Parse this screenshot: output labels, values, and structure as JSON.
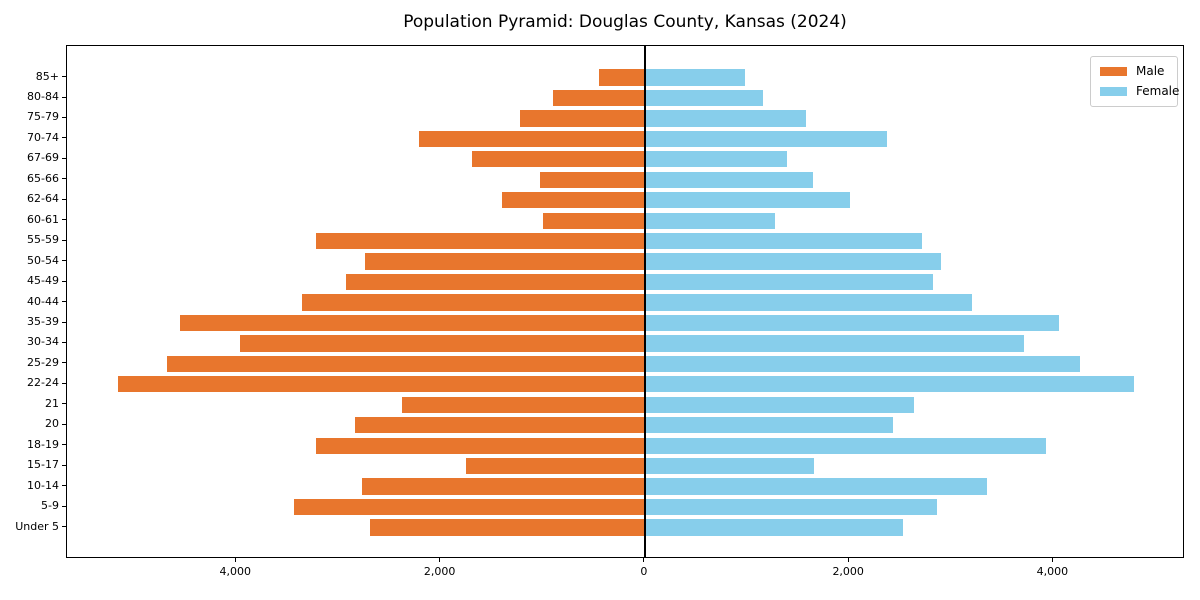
{
  "title": "Population Pyramid: Douglas County, Kansas (2024)",
  "legend": {
    "male_label": "Male",
    "female_label": "Female",
    "position": "upper right"
  },
  "colors": {
    "male": "#e8762d",
    "female": "#87ceeb",
    "axis": "#000000",
    "zero_line": "#000000",
    "legend_border": "#cccccc",
    "background": "#ffffff"
  },
  "chart_data": {
    "type": "bar",
    "subtype": "population-pyramid",
    "orientation": "horizontal",
    "title": "Population Pyramid: Douglas County, Kansas (2024)",
    "xlabel": "",
    "ylabel": "",
    "categories_order": "top-to-bottom",
    "categories": [
      "85+",
      "80-84",
      "75-79",
      "70-74",
      "67-69",
      "65-66",
      "62-64",
      "60-61",
      "55-59",
      "50-54",
      "45-49",
      "40-44",
      "35-39",
      "30-34",
      "25-29",
      "22-24",
      "21",
      "20",
      "18-19",
      "15-17",
      "10-14",
      "5-9",
      "Under 5"
    ],
    "series": [
      {
        "name": "Male",
        "side": "left",
        "color": "#e8762d",
        "values": [
          450,
          900,
          1220,
          2210,
          1690,
          1030,
          1400,
          1000,
          3220,
          2740,
          2930,
          3360,
          4550,
          3960,
          4680,
          5160,
          2380,
          2840,
          3220,
          1750,
          2770,
          3440,
          2690
        ]
      },
      {
        "name": "Female",
        "side": "right",
        "color": "#87ceeb",
        "values": [
          980,
          1160,
          1580,
          2370,
          1390,
          1650,
          2010,
          1270,
          2710,
          2900,
          2820,
          3200,
          4050,
          3710,
          4260,
          4790,
          2640,
          2430,
          3930,
          1660,
          3350,
          2860,
          2530
        ]
      }
    ],
    "x_ticks": {
      "values": [
        -4000,
        -2000,
        0,
        2000,
        4000
      ],
      "labels": [
        "4,000",
        "2,000",
        "0",
        "2,000",
        "4,000"
      ]
    },
    "xlim": [
      -5658,
      5288
    ],
    "grid": false,
    "legend_position": "upper right",
    "zero_line": true
  }
}
